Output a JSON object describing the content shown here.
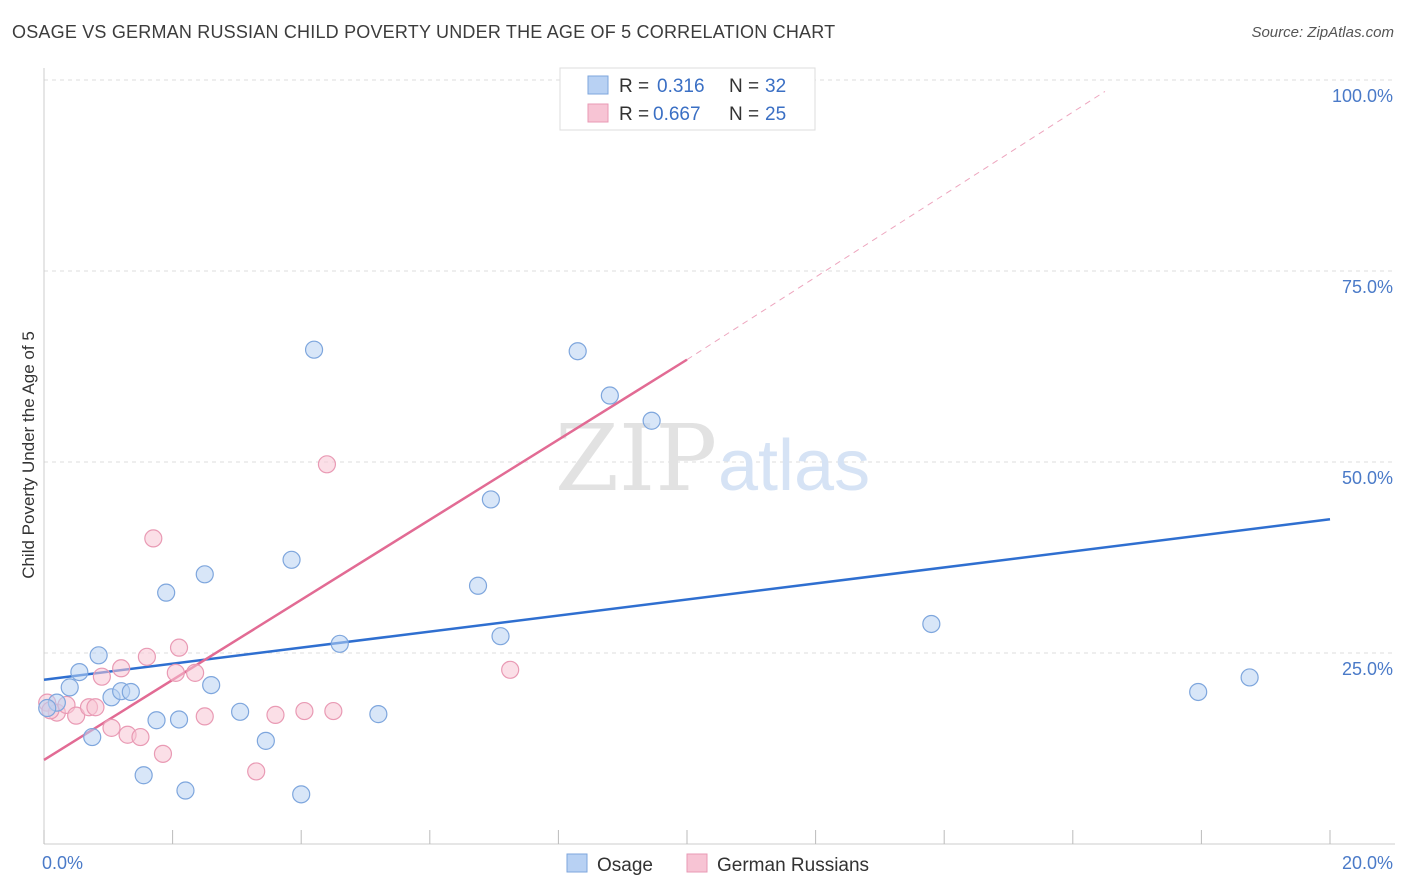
{
  "header": {
    "title": "OSAGE VS GERMAN RUSSIAN CHILD POVERTY UNDER THE AGE OF 5 CORRELATION CHART",
    "source": "Source: ZipAtlas.com"
  },
  "colors": {
    "osage_fill": "#b8d1f3",
    "osage_stroke": "#7ea6dd",
    "osage_line": "#2f6fd0",
    "german_fill": "#f7c4d4",
    "german_stroke": "#e99ab4",
    "german_line": "#e26b94",
    "grid": "#dddddd",
    "tick_label": "#4a7ac8"
  },
  "watermark": {
    "zip": "ZIP",
    "atlas": "atlas"
  },
  "legend": {
    "rows": [
      {
        "r_label": "R =",
        "r_value": "0.316",
        "n_label": "N =",
        "n_value": "32"
      },
      {
        "r_label": "R =",
        "r_value": "0.667",
        "n_label": "N =",
        "n_value": "25"
      }
    ]
  },
  "chart_data": {
    "type": "scatter",
    "title": "OSAGE VS GERMAN RUSSIAN CHILD POVERTY UNDER THE AGE OF 5 CORRELATION CHART",
    "xlabel": "",
    "ylabel": "Child Poverty Under the Age of 5",
    "xlim": [
      0,
      20
    ],
    "ylim": [
      0,
      100
    ],
    "x_tick_labels": [
      "0.0%",
      "20.0%"
    ],
    "y_ticks": [
      25,
      50,
      75,
      100
    ],
    "y_tick_labels": [
      "25.0%",
      "50.0%",
      "75.0%",
      "100.0%"
    ],
    "grid": true,
    "series": [
      {
        "name": "Osage",
        "r": 0.316,
        "n": 32,
        "trend": {
          "x": [
            0,
            20
          ],
          "y": [
            21.5,
            42.5
          ]
        },
        "points": [
          [
            0.2,
            18.5
          ],
          [
            0.4,
            20.5
          ],
          [
            0.55,
            22.5
          ],
          [
            0.75,
            14
          ],
          [
            0.85,
            24.7
          ],
          [
            1.05,
            19.2
          ],
          [
            1.2,
            20
          ],
          [
            1.35,
            19.9
          ],
          [
            1.55,
            9
          ],
          [
            1.75,
            16.2
          ],
          [
            1.9,
            32.9
          ],
          [
            2.1,
            16.3
          ],
          [
            2.2,
            7
          ],
          [
            2.5,
            35.3
          ],
          [
            2.6,
            20.8
          ],
          [
            3.05,
            17.3
          ],
          [
            3.45,
            13.5
          ],
          [
            3.85,
            37.2
          ],
          [
            4.0,
            6.5
          ],
          [
            4.2,
            64.7
          ],
          [
            4.6,
            26.2
          ],
          [
            5.2,
            17
          ],
          [
            6.75,
            33.8
          ],
          [
            6.95,
            45.1
          ],
          [
            7.1,
            27.2
          ],
          [
            8.3,
            64.5
          ],
          [
            8.8,
            58.7
          ],
          [
            9.45,
            55.4
          ],
          [
            13.8,
            28.8
          ],
          [
            17.95,
            19.9
          ],
          [
            18.75,
            21.8
          ],
          [
            0.05,
            17.8
          ]
        ]
      },
      {
        "name": "German Russians",
        "r": 0.667,
        "n": 25,
        "trend": {
          "x": [
            0,
            10
          ],
          "y": [
            11,
            63.4
          ]
        },
        "trend_dashed": {
          "x": [
            10,
            16.5
          ],
          "y": [
            63.4,
            98.5
          ]
        },
        "points": [
          [
            0.05,
            18.5
          ],
          [
            0.2,
            17.2
          ],
          [
            0.35,
            18.2
          ],
          [
            0.5,
            16.8
          ],
          [
            0.7,
            17.9
          ],
          [
            0.8,
            17.9
          ],
          [
            0.9,
            21.9
          ],
          [
            1.05,
            15.2
          ],
          [
            1.2,
            23
          ],
          [
            1.3,
            14.3
          ],
          [
            1.5,
            14
          ],
          [
            1.6,
            24.5
          ],
          [
            1.7,
            40
          ],
          [
            1.85,
            11.8
          ],
          [
            2.05,
            22.4
          ],
          [
            2.1,
            25.7
          ],
          [
            2.35,
            22.4
          ],
          [
            2.5,
            16.7
          ],
          [
            3.3,
            9.5
          ],
          [
            3.6,
            16.9
          ],
          [
            4.05,
            17.4
          ],
          [
            4.4,
            49.7
          ],
          [
            4.5,
            17.4
          ],
          [
            7.25,
            22.8
          ],
          [
            0.1,
            17.5
          ]
        ]
      }
    ]
  }
}
